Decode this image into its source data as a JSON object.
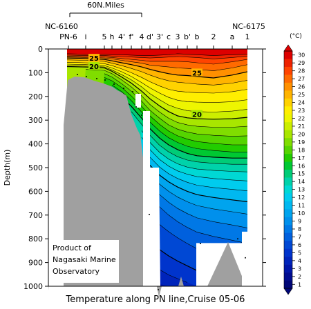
{
  "chart_data": {
    "type": "heatmap",
    "title": "Temperature along PN line,Cruise 05-06",
    "ylabel": "Depth(m)",
    "ylim": [
      0,
      1000
    ],
    "y_ticks": [
      0,
      100,
      200,
      300,
      400,
      500,
      600,
      700,
      800,
      900,
      1000
    ],
    "x_stations": [
      "PN-6",
      "i",
      "5",
      "h",
      "4'",
      "f'",
      "4",
      "d'",
      "3'",
      "c",
      "3",
      "b'",
      "b",
      "2",
      "a",
      "1"
    ],
    "top_left_label": "NC-6160",
    "top_right_label": "NC-6175",
    "scale_bar_label": "60N.Miles",
    "colorbar": {
      "unit": "(°C)",
      "min": 1,
      "max": 30,
      "ticks": [
        30,
        29,
        28,
        27,
        26,
        25,
        24,
        23,
        22,
        21,
        20,
        19,
        18,
        17,
        16,
        15,
        14,
        13,
        12,
        11,
        10,
        9,
        8,
        7,
        6,
        5,
        4,
        3,
        2,
        1
      ],
      "colors": {
        "30": "#dd0000",
        "29": "#ee2200",
        "28": "#ff4400",
        "27": "#ff6a00",
        "26": "#ff9000",
        "25": "#ffb400",
        "24": "#ffd200",
        "23": "#ffee00",
        "22": "#eef500",
        "21": "#ccee00",
        "20": "#a8e600",
        "19": "#80dd00",
        "18": "#55d400",
        "17": "#22cc00",
        "16": "#00c832",
        "15": "#00cc77",
        "14": "#00d2aa",
        "13": "#00d8d4",
        "12": "#00ccee",
        "11": "#00b8f0",
        "10": "#00a4ee",
        "9": "#0090ec",
        "8": "#0078e6",
        "7": "#0060dd",
        "6": "#0048d4",
        "5": "#0034cc",
        "4": "#0024bb",
        "3": "#0016a8",
        "2": "#000c90",
        "1": "#000677"
      }
    },
    "contour_labels": [
      {
        "value": 25,
        "station": "i",
        "depth": 38
      },
      {
        "value": 20,
        "station": "i",
        "depth": 72
      },
      {
        "value": 25,
        "station": "b'",
        "depth": 100
      },
      {
        "value": 20,
        "station": "b'",
        "depth": 275
      }
    ],
    "credit": "Product of\nNagasaki Marine\nObservatory"
  }
}
